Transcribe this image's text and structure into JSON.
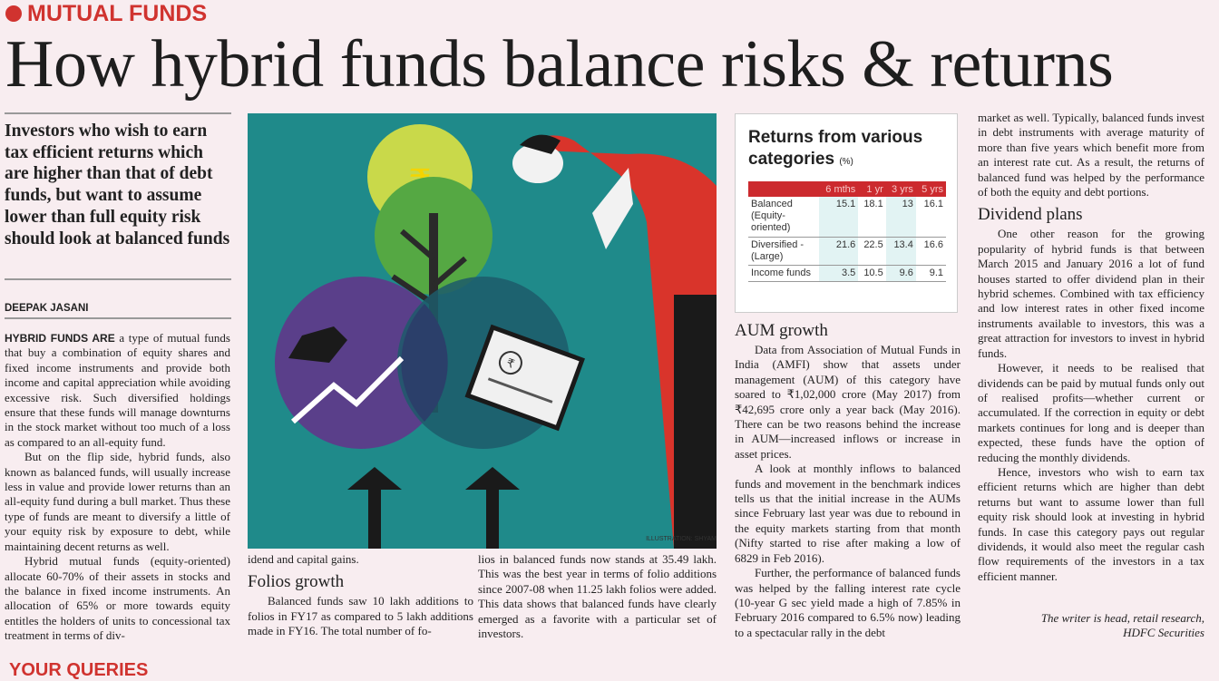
{
  "section": "MUTUAL FUNDS",
  "headline": "How hybrid funds balance risks & returns",
  "deck": "Investors who wish to earn tax efficient returns which are higher than that of debt funds, but want to assume lower than full equity risk should look at balanced funds",
  "byline": "DEEPAK JASANI",
  "illustration_credit": "ILLUSTRATION: SHYAM",
  "colors": {
    "accent": "#d0332f",
    "illustration_bg": "#1f8a8a",
    "table_header": "#cc2a2e"
  },
  "col1": {
    "lead": "HYBRID FUNDS ARE",
    "p1": " a type of mutual funds that buy a combination of equity shares and fixed income instruments and provide both income and capital appreciation while avoiding excessive risk. Such diversified holdings ensure that these funds will manage downturns in the stock market without too much of a loss as compared to an all-equity fund.",
    "p2": "But on the flip side, hybrid funds, also known as balanced funds, will usually increase less in value and provide lower returns than an all-equity fund during a bull market. Thus these type of funds are meant to diversify a little of your equity risk by exposure to debt, while maintaining decent returns as well.",
    "p3": "Hybrid mutual funds (equity-oriented) allocate 60-70% of their assets in stocks and the balance in fixed income instruments. An allocation of 65% or more towards equity entitles the holders of units to concessional tax treatment in terms of div-"
  },
  "col2": {
    "p1": "idend and capital gains.",
    "heading": "Folios growth",
    "p2": "Balanced funds saw 10 lakh additions to folios in FY17 as compared to 5 lakh additions made in FY16. The total number of fo-"
  },
  "col3": {
    "p1": "lios in balanced funds now stands at 35.49 lakh. This was the best year in terms of folio additions since 2007-08 when 11.25 lakh folios were added. This data shows that balanced funds have clearly emerged as a favorite with a particular set of investors."
  },
  "table": {
    "title": "Returns from various categories",
    "unit": "(%)",
    "columns": [
      "",
      "6 mths",
      "1 yr",
      "3 yrs",
      "5 yrs"
    ],
    "rows": [
      {
        "label": "Balanced (Equity-oriented)",
        "values": [
          "15.1",
          "18.1",
          "13",
          "16.1"
        ]
      },
      {
        "label": "Diversified - (Large)",
        "values": [
          "21.6",
          "22.5",
          "13.4",
          "16.6"
        ]
      },
      {
        "label": "Income funds",
        "values": [
          "3.5",
          "10.5",
          "9.6",
          "9.1"
        ]
      }
    ]
  },
  "col4": {
    "heading": "AUM growth",
    "p1": "Data from Association of Mutual Funds in India (AMFI) show that assets under management (AUM) of this category have soared to ₹1,02,000 crore (May 2017) from ₹42,695 crore only a year back (May 2016). There can be two reasons behind the increase in AUM—increased inflows or increase in asset prices.",
    "p2": "A look at monthly inflows to balanced funds and movement in the benchmark indices tells us that the initial increase in the AUMs since February last year was due to rebound in the equity markets starting from that month (Nifty started to rise after making a low of 6829 in Feb 2016).",
    "p3": "Further, the performance of balanced funds was helped by the falling interest rate cycle (10-year G sec yield made a high of 7.85% in February 2016 compared to 6.5% now) leading to a spectacular rally in the debt"
  },
  "col5": {
    "p1": "market as well. Typically, balanced funds invest in debt instruments with average maturity of more than five years which benefit more from an interest rate cut. As a result, the returns of balanced fund was helped by the performance of both the equity and debt portions.",
    "heading": "Dividend plans",
    "p2": "One other reason for the growing popularity of hybrid funds is that between March 2015 and January 2016 a lot of fund houses started to offer dividend plan in their hybrid schemes. Combined with tax efficiency and low interest rates in other fixed income instruments available to investors, this was a great attraction for investors to invest in hybrid funds.",
    "p3": "However, it needs to be realised that dividends can be paid by mutual funds only out of realised profits—whether current or accumulated. If the correction in equity or debt markets continues for long and is deeper than expected, these funds have the option of reducing the monthly dividends.",
    "p4": "Hence, investors who wish to earn tax efficient returns which are higher than debt returns but want to assume lower than full equity risk should look at investing in hybrid funds. In case this category pays out regular dividends, it would also meet the regular cash flow requirements of the investors in a tax efficient manner.",
    "signoff_1": "The writer is head, retail research,",
    "signoff_2": "HDFC Securities"
  },
  "next_section": "YOUR QUERIES"
}
